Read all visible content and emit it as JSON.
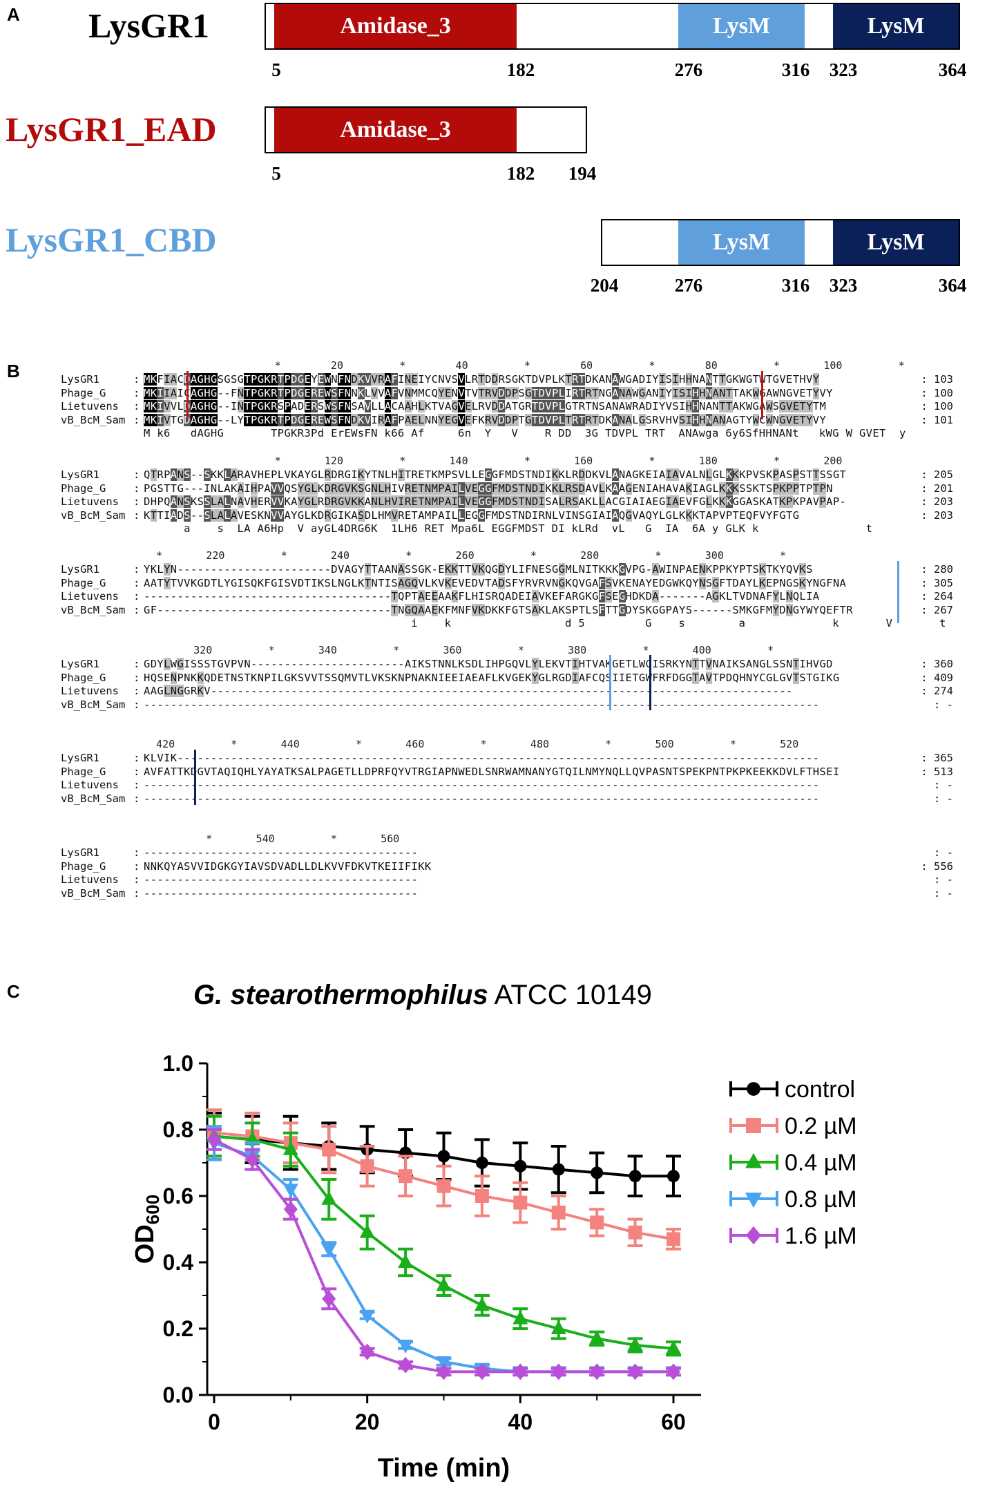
{
  "panel_a": {
    "letter": "A",
    "constructs": [
      {
        "name": "LysGR1",
        "color": "#000000",
        "domains": [
          {
            "label": "Amidase_3",
            "color": "#b30a0a"
          },
          {
            "label": "LysM",
            "color": "#5fa0dc"
          },
          {
            "label": "LysM",
            "color": "#0b2059"
          }
        ],
        "positions": [
          "5",
          "182",
          "276",
          "316",
          "323",
          "364"
        ]
      },
      {
        "name": "LysGR1_EAD",
        "color": "#b30a0a",
        "domains": [
          {
            "label": "Amidase_3",
            "color": "#b30a0a"
          }
        ],
        "positions": [
          "5",
          "182",
          "194"
        ]
      },
      {
        "name": "LysGR1_CBD",
        "color": "#5fa0dc",
        "domains": [
          {
            "label": "LysM",
            "color": "#5fa0dc"
          },
          {
            "label": "LysM",
            "color": "#0b2059"
          }
        ],
        "positions": [
          "204",
          "276",
          "316",
          "323",
          "364"
        ]
      }
    ]
  },
  "panel_b": {
    "letter": "B",
    "blocks": [
      {
        "ruler": "                     *        20         *        40         *        60         *        80         *       100         *",
        "rows": [
          {
            "name": "LysGR1",
            "seq": "MKFIACDAGHGSGSGTPGKRTPDGEYEWNFNDKVVRAFINEIYCNVSVLRTDDRSGKTDVPLKTRTDKANAWGADIYISIHHNANTTGKWGTWTGVETHVY",
            "end": "103"
          },
          {
            "name": "Phage_G",
            "seq": "MKIIAICAGHG--FNTPGKRTPDGEREWSFNNKLVVAFVNMMCQYENVTVTRVDDPSGTDVPLIRTRTNGANAWGANIYISIHHNANTTAKWGAWNGVETYVY",
            "end": "100"
          },
          {
            "name": "Lietuvens",
            "seq": "MKIVVLDAGHG--INTPGKRSPADERSWSFNSAVLLACAAHLKTVAGVELRVDDATGRTDVPLGTRTNSANAWRADIYVSIHHNANTTAKWGAWSGVETYTM",
            "end": "100"
          },
          {
            "name": "vB_BcM_Sam",
            "seq": "MKIVTGDAGHG--LYTPGKRTPDGEREWSFNDKVIRAFPAELNNYEGVEFKRVDDPTGTDVPLTRTRTDKANALGSRVHVSIHHNANAGTYWCWNGVETYVY",
            "end": "101"
          }
        ],
        "consensus": "M k6   dAGHG       TPGKR3Pd ErEWsFN k66 Af     6n  Y   V    R DD  3G TDVPL TRT  ANAwga 6y6SfHHNANt   kWG W GVET  y"
      },
      {
        "ruler": "                     *       120         *       140         *       160         *       180         *       200",
        "rows": [
          {
            "name": "LysGR1",
            "seq": "QTRPANS--SKKLARAVHEPLVKAYGLRDRGIKYTNLHITRETKMPSVLLEGGFMDSTNDIKKLRDDKVLANAGKEIAIAVALNLGLKKKPVSKPASPSTTSSGT",
            "end": "205"
          },
          {
            "name": "Phage_G",
            "seq": "PGSTTG---INLAKAIHPAVVQSYGLKDRGVKSGNLHIVRETNMPAILVEGGFMDSTNDIKKLRSDAVLKAAGENIAHAVAKIAGLKKKSSKTSPKPPTPTPN",
            "end": "201"
          },
          {
            "name": "Lietuvens",
            "seq": "DHPQANSKSSLALNAVHERVVKAYGLRDRGVKKANLHVIRETNMPAILVEGGFMDSTNDISALRSAKLLACGIAIAEGIAEVFGLKKKGGASKATKPKPAVPAP-",
            "end": "203"
          },
          {
            "name": "vB_BcM_Sam",
            "seq": "KTTIADS--SLALAVESKNVVAYGLKDRGIKASDLHMVRETAMPAILLEGGFMDSTNDIRNLVINSGIAIAQGVAQYLGLKKKTAPVPTEQFVYFGTG",
            "end": "203"
          }
        ],
        "consensus": "      a    s  LA A6Hp  V ayGL4DRG6K  1LH6 RET Mpa6L EGGFMDST DI kLRd  vL   G  IA  6A y GLK k                t"
      },
      {
        "ruler": "  *       220         *       240         *       260         *       280         *       300         *",
        "rows": [
          {
            "name": "LysGR1",
            "seq": "YKLYN-----------------------DVAGYTTAANASSGK-EKKTTVKQGDYLIFNESGGMLNITKKKGVPG-AWINPAENKPPKYPTSKTKYQVKS",
            "end": "280"
          },
          {
            "name": "Phage_G",
            "seq": "AATYTVVKGDTLYGISQKFGISVDTIKSLNGLKTNTISAGQVLKVKEVEDVTADSFYRVRVNGKQVGAFSVKENAYEDGWKQYNSGFTDAYLKEPNGSKYNGFNA",
            "end": "305"
          },
          {
            "name": "Lietuvens",
            "seq": "-------------------------------------TQPTAEEAAKFLHISRQADEIAVKEFARGKGFSEGHDKDA-------AGKLTVDNAFYLNQLIA",
            "end": "264"
          },
          {
            "name": "vB_BcM_Sam",
            "seq": "GF-----------------------------------TNGQAAEKFMNFVKDKKFGTSAKLAKSPTLSFTTGDYSKGGPAYS------SMKGFMYDNGYWYQEFTR",
            "end": "267"
          }
        ],
        "consensus": "                                        i    k                 d 5         G    s        a             k       V       t"
      },
      {
        "ruler": "        320         *       340         *       360         *       380         *       400         *",
        "rows": [
          {
            "name": "LysGR1",
            "seq": "GDYLWGISSSTGVPVN-----------------------AIKSTNNLKSDLIHPGQVLYLEKVTIHTVAKGETLWGISRKYNTTVNAIKSANGLSSNTIHVGD",
            "end": "360"
          },
          {
            "name": "Phage_G",
            "seq": "HQSENPNKKQDETNSTKNPILGKSVVTSSQMVTLVKSKNPNAKNIEEIAEAFLKVGEKYGLRGDIAFCQSIIETGWFRFDGGTAVTPDQHNYCGLGVTSTGIKG",
            "end": "409"
          },
          {
            "name": "Lietuvens",
            "seq": "AAGLNGGRKV---------------------------------------------------------------------------------------",
            "end": "274"
          },
          {
            "name": "vB_BcM_Sam",
            "seq": "-----------------------------------------------------------------------------------------------------",
            "end": "-"
          }
        ],
        "consensus": ""
      },
      {
        "ruler": "  420         *       440         *       460         *       480         *       500         *       520",
        "rows": [
          {
            "name": "LysGR1",
            "seq": "KLVIK------------------------------------------------------------------------------------------------",
            "end": "365"
          },
          {
            "name": "Phage_G",
            "seq": "AVFATTKDGVTAQIQHLYAYATKSALPAGETLLDPRFQYVTRGIAPNWEDLSNRWAMNANYGTQILNMYNQLLQVPASNTSPEKPNTPKPKEEKKDVLFTHSEI",
            "end": "513"
          },
          {
            "name": "Lietuvens",
            "seq": "-----------------------------------------------------------------------------------------------------",
            "end": "-"
          },
          {
            "name": "vB_BcM_Sam",
            "seq": "-----------------------------------------------------------------------------------------------------",
            "end": "-"
          }
        ],
        "consensus": ""
      },
      {
        "ruler": "          *       540         *       560",
        "rows": [
          {
            "name": "LysGR1",
            "seq": "-----------------------------------------",
            "end": "-"
          },
          {
            "name": "Phage_G",
            "seq": "NNKQYASVVIDGKGYIAVSDVADLLDLKVVFDKVTKEIIFIKK",
            "end": "556"
          },
          {
            "name": "Lietuvens",
            "seq": "-----------------------------------------",
            "end": "-"
          },
          {
            "name": "vB_BcM_Sam",
            "seq": "-----------------------------------------",
            "end": "-"
          }
        ],
        "consensus": ""
      }
    ]
  },
  "panel_c": {
    "letter": "C",
    "title_italic": "G. stearothermophilus",
    "title_rest": " ATCC 10149"
  },
  "chart_data": {
    "type": "line",
    "title": "G. stearothermophilus ATCC 10149",
    "xlabel": "Time (min)",
    "ylabel_main": "OD",
    "ylabel_sub": "600",
    "xlim": [
      0,
      60
    ],
    "ylim": [
      0.0,
      1.0
    ],
    "x_ticks": [
      "0",
      "20",
      "40",
      "60"
    ],
    "y_ticks": [
      "0.0",
      "0.2",
      "0.4",
      "0.6",
      "0.8",
      "1.0"
    ],
    "x": [
      0,
      5,
      10,
      15,
      20,
      25,
      30,
      35,
      40,
      45,
      50,
      55,
      60
    ],
    "series": [
      {
        "name": "control",
        "color": "#000000",
        "marker": "circle",
        "values": [
          0.78,
          0.77,
          0.76,
          0.75,
          0.74,
          0.73,
          0.72,
          0.7,
          0.69,
          0.68,
          0.67,
          0.66,
          0.66
        ],
        "errors": [
          0.07,
          0.07,
          0.08,
          0.07,
          0.07,
          0.07,
          0.07,
          0.07,
          0.07,
          0.07,
          0.06,
          0.06,
          0.06
        ]
      },
      {
        "name": "0.2 µM",
        "color": "#f4827e",
        "marker": "square",
        "values": [
          0.79,
          0.78,
          0.76,
          0.74,
          0.69,
          0.66,
          0.63,
          0.6,
          0.58,
          0.55,
          0.52,
          0.49,
          0.47
        ],
        "errors": [
          0.07,
          0.07,
          0.06,
          0.07,
          0.06,
          0.06,
          0.06,
          0.06,
          0.06,
          0.05,
          0.04,
          0.04,
          0.03
        ]
      },
      {
        "name": "0.4 µM",
        "color": "#1aaf1a",
        "marker": "triangle-up",
        "values": [
          0.78,
          0.77,
          0.74,
          0.59,
          0.49,
          0.4,
          0.33,
          0.27,
          0.23,
          0.2,
          0.17,
          0.15,
          0.14
        ],
        "errors": [
          0.06,
          0.05,
          0.05,
          0.06,
          0.05,
          0.04,
          0.03,
          0.03,
          0.03,
          0.03,
          0.02,
          0.02,
          0.02
        ]
      },
      {
        "name": "0.8 µM",
        "color": "#4aa3f0",
        "marker": "triangle-down",
        "values": [
          0.76,
          0.72,
          0.62,
          0.44,
          0.24,
          0.15,
          0.1,
          0.08,
          0.07,
          0.07,
          0.07,
          0.07,
          0.07
        ],
        "errors": [
          0.05,
          0.04,
          0.03,
          0.02,
          0.01,
          0.01,
          0.01,
          0.01,
          0.01,
          0.01,
          0.01,
          0.01,
          0.01
        ]
      },
      {
        "name": "1.6 µM",
        "color": "#b84fd6",
        "marker": "diamond",
        "values": [
          0.77,
          0.71,
          0.56,
          0.29,
          0.13,
          0.09,
          0.07,
          0.07,
          0.07,
          0.07,
          0.07,
          0.07,
          0.07
        ],
        "errors": [
          0.03,
          0.03,
          0.03,
          0.03,
          0.01,
          0.01,
          0.01,
          0.01,
          0.01,
          0.01,
          0.01,
          0.01,
          0.01
        ]
      }
    ],
    "legend_position": "right",
    "grid": false
  }
}
